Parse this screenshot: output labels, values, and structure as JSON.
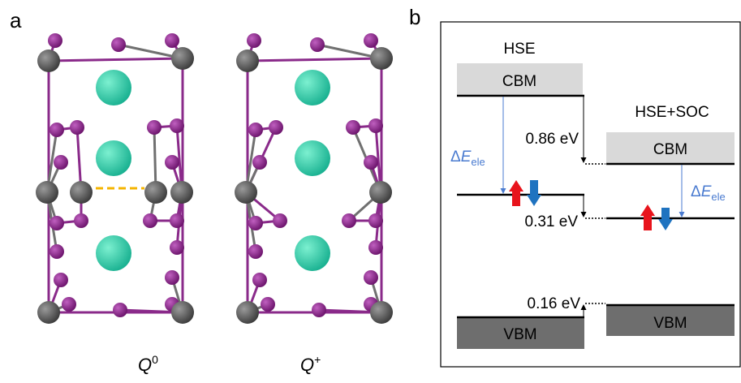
{
  "panel_a": {
    "label": "a",
    "structures": [
      {
        "symbol": "Q",
        "superscript": "0"
      },
      {
        "symbol": "Q",
        "superscript": "+"
      }
    ]
  },
  "panel_b": {
    "label": "b",
    "left_title": "HSE",
    "right_title": "HSE+SOC",
    "left_cbm": "CBM",
    "right_cbm": "CBM",
    "left_vbm": "VBM",
    "right_vbm": "VBM",
    "shift_cbm": "0.86 eV",
    "shift_defect": "0.31 eV",
    "shift_vbm": "0.16 eV",
    "delta_e": {
      "delta": "Δ",
      "symbol": "E",
      "subscript": "ele"
    }
  }
}
